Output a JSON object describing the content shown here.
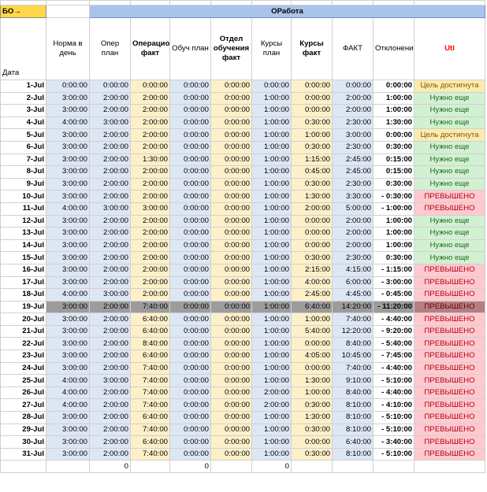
{
  "sheet": {
    "bo_label": "БО→",
    "section_title": "ОРабота",
    "headers": {
      "date": "Дата",
      "norma": "Норма в день",
      "oper_plan": "Опер план",
      "oper_fact": "Операционна факт",
      "obuch_plan": "Обуч план",
      "otdel_fact": "Отдел обучения факт",
      "kursy_plan": "Курсы план",
      "kursy_fact": "Курсы факт",
      "fact": "ФАКТ",
      "otkl": "Отклонение",
      "util": "Utl"
    },
    "status_colors": {
      "Цель достигнута": "#fcebb0",
      "Нужно еще": "#d2f0d2",
      "ПРЕВЫШЕНО": "#ffc9cf"
    },
    "selected_row": "19-Jul",
    "rows": [
      {
        "date": "1-Jul",
        "norma": "0:00:00",
        "oper_plan": "0:00:00",
        "oper_fact": "0:00:00",
        "obuch_plan": "0:00:00",
        "otdel_fact": "0:00:00",
        "kursy_plan": "0:00:00",
        "kursy_fact": "0:00:00",
        "fact": "0:00:00",
        "otkl": "0:00:00",
        "status": "Цель достигнута"
      },
      {
        "date": "2-Jul",
        "norma": "3:00:00",
        "oper_plan": "2:00:00",
        "oper_fact": "2:00:00",
        "obuch_plan": "0:00:00",
        "otdel_fact": "0:00:00",
        "kursy_plan": "1:00:00",
        "kursy_fact": "0:00:00",
        "fact": "2:00:00",
        "otkl": "1:00:00",
        "status": "Нужно еще"
      },
      {
        "date": "3-Jul",
        "norma": "3:00:00",
        "oper_plan": "2:00:00",
        "oper_fact": "2:00:00",
        "obuch_plan": "0:00:00",
        "otdel_fact": "0:00:00",
        "kursy_plan": "1:00:00",
        "kursy_fact": "0:00:00",
        "fact": "2:00:00",
        "otkl": "1:00:00",
        "status": "Нужно еще"
      },
      {
        "date": "4-Jul",
        "norma": "4:00:00",
        "oper_plan": "3:00:00",
        "oper_fact": "2:00:00",
        "obuch_plan": "0:00:00",
        "otdel_fact": "0:00:00",
        "kursy_plan": "1:00:00",
        "kursy_fact": "0:30:00",
        "fact": "2:30:00",
        "otkl": "1:30:00",
        "status": "Нужно еще"
      },
      {
        "date": "5-Jul",
        "norma": "3:00:00",
        "oper_plan": "2:00:00",
        "oper_fact": "2:00:00",
        "obuch_plan": "0:00:00",
        "otdel_fact": "0:00:00",
        "kursy_plan": "1:00:00",
        "kursy_fact": "1:00:00",
        "fact": "3:00:00",
        "otkl": "0:00:00",
        "status": "Цель достигнута"
      },
      {
        "date": "6-Jul",
        "norma": "3:00:00",
        "oper_plan": "2:00:00",
        "oper_fact": "2:00:00",
        "obuch_plan": "0:00:00",
        "otdel_fact": "0:00:00",
        "kursy_plan": "1:00:00",
        "kursy_fact": "0:30:00",
        "fact": "2:30:00",
        "otkl": "0:30:00",
        "status": "Нужно еще"
      },
      {
        "date": "7-Jul",
        "norma": "3:00:00",
        "oper_plan": "2:00:00",
        "oper_fact": "1:30:00",
        "obuch_plan": "0:00:00",
        "otdel_fact": "0:00:00",
        "kursy_plan": "1:00:00",
        "kursy_fact": "1:15:00",
        "fact": "2:45:00",
        "otkl": "0:15:00",
        "status": "Нужно еще"
      },
      {
        "date": "8-Jul",
        "norma": "3:00:00",
        "oper_plan": "2:00:00",
        "oper_fact": "2:00:00",
        "obuch_plan": "0:00:00",
        "otdel_fact": "0:00:00",
        "kursy_plan": "1:00:00",
        "kursy_fact": "0:45:00",
        "fact": "2:45:00",
        "otkl": "0:15:00",
        "status": "Нужно еще"
      },
      {
        "date": "9-Jul",
        "norma": "3:00:00",
        "oper_plan": "2:00:00",
        "oper_fact": "2:00:00",
        "obuch_plan": "0:00:00",
        "otdel_fact": "0:00:00",
        "kursy_plan": "1:00:00",
        "kursy_fact": "0:30:00",
        "fact": "2:30:00",
        "otkl": "0:30:00",
        "status": "Нужно еще"
      },
      {
        "date": "10-Jul",
        "norma": "3:00:00",
        "oper_plan": "2:00:00",
        "oper_fact": "2:00:00",
        "obuch_plan": "0:00:00",
        "otdel_fact": "0:00:00",
        "kursy_plan": "1:00:00",
        "kursy_fact": "1:30:00",
        "fact": "3:30:00",
        "otkl": "- 0:30:00",
        "status": "ПРЕВЫШЕНО"
      },
      {
        "date": "11-Jul",
        "norma": "4:00:00",
        "oper_plan": "3:00:00",
        "oper_fact": "3:00:00",
        "obuch_plan": "0:00:00",
        "otdel_fact": "0:00:00",
        "kursy_plan": "1:00:00",
        "kursy_fact": "2:00:00",
        "fact": "5:00:00",
        "otkl": "- 1:00:00",
        "status": "ПРЕВЫШЕНО"
      },
      {
        "date": "12-Jul",
        "norma": "3:00:00",
        "oper_plan": "2:00:00",
        "oper_fact": "2:00:00",
        "obuch_plan": "0:00:00",
        "otdel_fact": "0:00:00",
        "kursy_plan": "1:00:00",
        "kursy_fact": "0:00:00",
        "fact": "2:00:00",
        "otkl": "1:00:00",
        "status": "Нужно еще"
      },
      {
        "date": "13-Jul",
        "norma": "3:00:00",
        "oper_plan": "2:00:00",
        "oper_fact": "2:00:00",
        "obuch_plan": "0:00:00",
        "otdel_fact": "0:00:00",
        "kursy_plan": "1:00:00",
        "kursy_fact": "0:00:00",
        "fact": "2:00:00",
        "otkl": "1:00:00",
        "status": "Нужно еще"
      },
      {
        "date": "14-Jul",
        "norma": "3:00:00",
        "oper_plan": "2:00:00",
        "oper_fact": "2:00:00",
        "obuch_plan": "0:00:00",
        "otdel_fact": "0:00:00",
        "kursy_plan": "1:00:00",
        "kursy_fact": "0:00:00",
        "fact": "2:00:00",
        "otkl": "1:00:00",
        "status": "Нужно еще"
      },
      {
        "date": "15-Jul",
        "norma": "3:00:00",
        "oper_plan": "2:00:00",
        "oper_fact": "2:00:00",
        "obuch_plan": "0:00:00",
        "otdel_fact": "0:00:00",
        "kursy_plan": "1:00:00",
        "kursy_fact": "0:30:00",
        "fact": "2:30:00",
        "otkl": "0:30:00",
        "status": "Нужно еще"
      },
      {
        "date": "16-Jul",
        "norma": "3:00:00",
        "oper_plan": "2:00:00",
        "oper_fact": "2:00:00",
        "obuch_plan": "0:00:00",
        "otdel_fact": "0:00:00",
        "kursy_plan": "1:00:00",
        "kursy_fact": "2:15:00",
        "fact": "4:15:00",
        "otkl": "- 1:15:00",
        "status": "ПРЕВЫШЕНО"
      },
      {
        "date": "17-Jul",
        "norma": "3:00:00",
        "oper_plan": "2:00:00",
        "oper_fact": "2:00:00",
        "obuch_plan": "0:00:00",
        "otdel_fact": "0:00:00",
        "kursy_plan": "1:00:00",
        "kursy_fact": "4:00:00",
        "fact": "6:00:00",
        "otkl": "- 3:00:00",
        "status": "ПРЕВЫШЕНО"
      },
      {
        "date": "18-Jul",
        "norma": "4:00:00",
        "oper_plan": "3:00:00",
        "oper_fact": "2:00:00",
        "obuch_plan": "0:00:00",
        "otdel_fact": "0:00:00",
        "kursy_plan": "1:00:00",
        "kursy_fact": "2:45:00",
        "fact": "4:45:00",
        "otkl": "- 0:45:00",
        "status": "ПРЕВЫШЕНО"
      },
      {
        "date": "19-Jul",
        "norma": "3:00:00",
        "oper_plan": "2:00:00",
        "oper_fact": "7:40:00",
        "obuch_plan": "0:00:00",
        "otdel_fact": "0:00:00",
        "kursy_plan": "1:00:00",
        "kursy_fact": "6:40:00",
        "fact": "14:20:00",
        "otkl": "- 11:20:00",
        "status": "ПРЕВЫШЕНО"
      },
      {
        "date": "20-Jul",
        "norma": "3:00:00",
        "oper_plan": "2:00:00",
        "oper_fact": "6:40:00",
        "obuch_plan": "0:00:00",
        "otdel_fact": "0:00:00",
        "kursy_plan": "1:00:00",
        "kursy_fact": "1:00:00",
        "fact": "7:40:00",
        "otkl": "- 4:40:00",
        "status": "ПРЕВЫШЕНО"
      },
      {
        "date": "21-Jul",
        "norma": "3:00:00",
        "oper_plan": "2:00:00",
        "oper_fact": "6:40:00",
        "obuch_plan": "0:00:00",
        "otdel_fact": "0:00:00",
        "kursy_plan": "1:00:00",
        "kursy_fact": "5:40:00",
        "fact": "12:20:00",
        "otkl": "- 9:20:00",
        "status": "ПРЕВЫШЕНО"
      },
      {
        "date": "22-Jul",
        "norma": "3:00:00",
        "oper_plan": "2:00:00",
        "oper_fact": "8:40:00",
        "obuch_plan": "0:00:00",
        "otdel_fact": "0:00:00",
        "kursy_plan": "1:00:00",
        "kursy_fact": "0:00:00",
        "fact": "8:40:00",
        "otkl": "- 5:40:00",
        "status": "ПРЕВЫШЕНО"
      },
      {
        "date": "23-Jul",
        "norma": "3:00:00",
        "oper_plan": "2:00:00",
        "oper_fact": "6:40:00",
        "obuch_plan": "0:00:00",
        "otdel_fact": "0:00:00",
        "kursy_plan": "1:00:00",
        "kursy_fact": "4:05:00",
        "fact": "10:45:00",
        "otkl": "- 7:45:00",
        "status": "ПРЕВЫШЕНО"
      },
      {
        "date": "24-Jul",
        "norma": "3:00:00",
        "oper_plan": "2:00:00",
        "oper_fact": "7:40:00",
        "obuch_plan": "0:00:00",
        "otdel_fact": "0:00:00",
        "kursy_plan": "1:00:00",
        "kursy_fact": "0:00:00",
        "fact": "7:40:00",
        "otkl": "- 4:40:00",
        "status": "ПРЕВЫШЕНО"
      },
      {
        "date": "25-Jul",
        "norma": "4:00:00",
        "oper_plan": "3:00:00",
        "oper_fact": "7:40:00",
        "obuch_plan": "0:00:00",
        "otdel_fact": "0:00:00",
        "kursy_plan": "1:00:00",
        "kursy_fact": "1:30:00",
        "fact": "9:10:00",
        "otkl": "- 5:10:00",
        "status": "ПРЕВЫШЕНО"
      },
      {
        "date": "26-Jul",
        "norma": "4:00:00",
        "oper_plan": "2:00:00",
        "oper_fact": "7:40:00",
        "obuch_plan": "0:00:00",
        "otdel_fact": "0:00:00",
        "kursy_plan": "2:00:00",
        "kursy_fact": "1:00:00",
        "fact": "8:40:00",
        "otkl": "- 4:40:00",
        "status": "ПРЕВЫШЕНО"
      },
      {
        "date": "27-Jul",
        "norma": "4:00:00",
        "oper_plan": "2:00:00",
        "oper_fact": "7:40:00",
        "obuch_plan": "0:00:00",
        "otdel_fact": "0:00:00",
        "kursy_plan": "2:00:00",
        "kursy_fact": "0:30:00",
        "fact": "8:10:00",
        "otkl": "- 4:10:00",
        "status": "ПРЕВЫШЕНО"
      },
      {
        "date": "28-Jul",
        "norma": "3:00:00",
        "oper_plan": "2:00:00",
        "oper_fact": "6:40:00",
        "obuch_plan": "0:00:00",
        "otdel_fact": "0:00:00",
        "kursy_plan": "1:00:00",
        "kursy_fact": "1:30:00",
        "fact": "8:10:00",
        "otkl": "- 5:10:00",
        "status": "ПРЕВЫШЕНО"
      },
      {
        "date": "29-Jul",
        "norma": "3:00:00",
        "oper_plan": "2:00:00",
        "oper_fact": "7:40:00",
        "obuch_plan": "0:00:00",
        "otdel_fact": "0:00:00",
        "kursy_plan": "1:00:00",
        "kursy_fact": "0:30:00",
        "fact": "8:10:00",
        "otkl": "- 5:10:00",
        "status": "ПРЕВЫШЕНО"
      },
      {
        "date": "30-Jul",
        "norma": "3:00:00",
        "oper_plan": "2:00:00",
        "oper_fact": "6:40:00",
        "obuch_plan": "0:00:00",
        "otdel_fact": "0:00:00",
        "kursy_plan": "1:00:00",
        "kursy_fact": "0:00:00",
        "fact": "6:40:00",
        "otkl": "- 3:40:00",
        "status": "ПРЕВЫШЕНО"
      },
      {
        "date": "31-Jul",
        "norma": "3:00:00",
        "oper_plan": "2:00:00",
        "oper_fact": "7:40:00",
        "obuch_plan": "0:00:00",
        "otdel_fact": "0:00:00",
        "kursy_plan": "1:00:00",
        "kursy_fact": "0:30:00",
        "fact": "8:10:00",
        "otkl": "- 5:10:00",
        "status": "ПРЕВЫШЕНО"
      }
    ],
    "footer": {
      "oper_plan": "0",
      "obuch_plan": "0",
      "kursy_plan": "0"
    }
  }
}
